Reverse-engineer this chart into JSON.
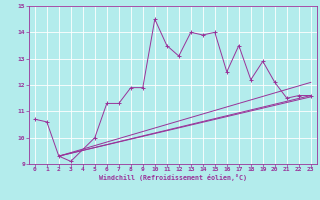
{
  "xlabel": "Windchill (Refroidissement éolien,°C)",
  "bg_color": "#b3ecec",
  "line_color": "#993399",
  "grid_color": "#ffffff",
  "xlim": [
    -0.5,
    23.5
  ],
  "ylim": [
    9,
    15
  ],
  "yticks": [
    9,
    10,
    11,
    12,
    13,
    14,
    15
  ],
  "xticks": [
    0,
    1,
    2,
    3,
    4,
    5,
    6,
    7,
    8,
    9,
    10,
    11,
    12,
    13,
    14,
    15,
    16,
    17,
    18,
    19,
    20,
    21,
    22,
    23
  ],
  "series1_x": [
    0,
    1,
    2,
    3,
    5,
    6,
    7,
    8,
    9,
    10,
    11,
    12,
    13,
    14,
    15,
    16,
    17,
    18,
    19,
    20,
    21,
    22,
    23
  ],
  "series1_y": [
    10.7,
    10.6,
    9.3,
    9.1,
    10.0,
    11.3,
    11.3,
    11.9,
    11.9,
    14.5,
    13.5,
    13.1,
    14.0,
    13.9,
    14.0,
    12.5,
    13.5,
    12.2,
    12.9,
    12.1,
    11.5,
    11.6,
    11.6
  ],
  "line2_x": [
    2,
    23
  ],
  "line2_y": [
    9.3,
    12.1
  ],
  "line3_x": [
    2,
    23
  ],
  "line3_y": [
    9.3,
    11.6
  ],
  "line4_x": [
    2,
    23
  ],
  "line4_y": [
    9.3,
    11.55
  ]
}
